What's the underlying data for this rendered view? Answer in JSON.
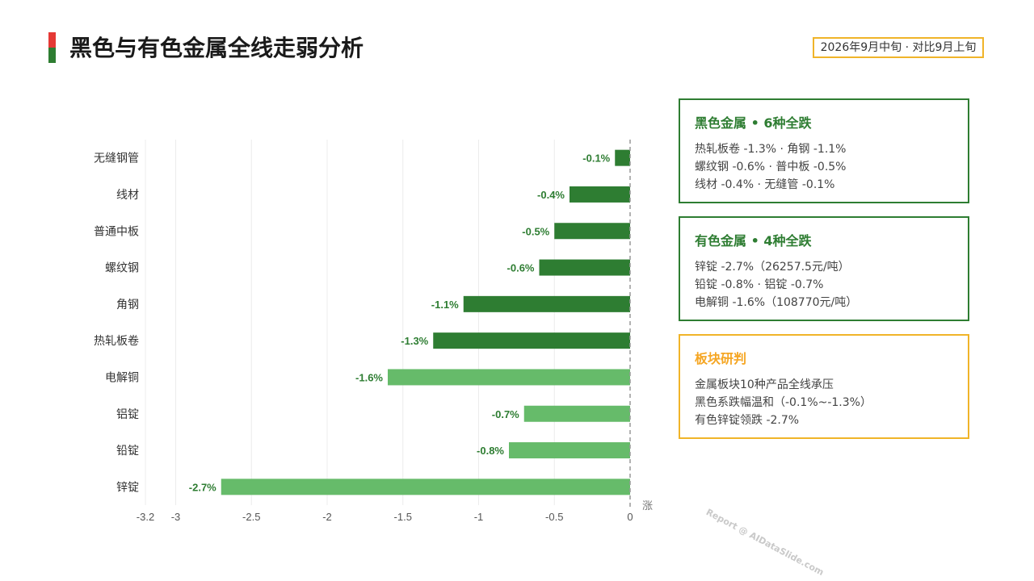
{
  "header": {
    "title": "黑色与有色金属全线走弱分析",
    "date_badge": "2026年9月中旬 · 对比9月上旬"
  },
  "colors": {
    "accent_red": "#e53935",
    "accent_green": "#2e7d32",
    "ferrous_bar": "#2e7d32",
    "nonferrous_bar": "#66bb6a",
    "label_green": "#2e7d32",
    "badge_border": "#f0b429",
    "analysis_title": "#f5a623"
  },
  "chart_data": {
    "type": "bar",
    "orientation": "horizontal",
    "categories": [
      "无缝钢管",
      "线材",
      "普通中板",
      "螺纹钢",
      "角钢",
      "热轧板卷",
      "电解铜",
      "铝锭",
      "铅锭",
      "锌锭"
    ],
    "values": [
      -0.1,
      -0.4,
      -0.5,
      -0.6,
      -1.1,
      -1.3,
      -1.6,
      -0.7,
      -0.8,
      -2.7
    ],
    "data_labels": [
      "-0.1%",
      "-0.4%",
      "-0.5%",
      "-0.6%",
      "-1.1%",
      "-1.3%",
      "-1.6%",
      "-0.7%",
      "-0.8%",
      "-2.7%"
    ],
    "groups": [
      "ferrous",
      "ferrous",
      "ferrous",
      "ferrous",
      "ferrous",
      "ferrous",
      "nonferrous",
      "nonferrous",
      "nonferrous",
      "nonferrous"
    ],
    "xlim": [
      -3.2,
      0
    ],
    "xticks": [
      -3.2,
      -3,
      -2.5,
      -2,
      -1.5,
      -1,
      -0.5,
      0
    ],
    "xtick_labels": [
      "-3.2",
      "-3",
      "-2.5",
      "-2",
      "-1.5",
      "-1",
      "-0.5",
      "0"
    ],
    "zero_line_label": "涨",
    "grid": true
  },
  "cards": [
    {
      "title": "黑色金属 • 6种全跌",
      "lines": [
        "热轧板卷 -1.3% · 角钢 -1.1%",
        "螺纹钢 -0.6% · 普中板 -0.5%",
        "线材 -0.4% · 无缝管 -0.1%"
      ],
      "border": "#2e7d32",
      "title_color": "#2e7d32"
    },
    {
      "title": "有色金属 • 4种全跌",
      "lines": [
        "锌锭 -2.7%（26257.5元/吨）",
        "铅锭 -0.8% · 铝锭 -0.7%",
        "电解铜 -1.6%（108770元/吨）"
      ],
      "border": "#2e7d32",
      "title_color": "#2e7d32"
    },
    {
      "title": "板块研判",
      "lines": [
        "金属板块10种产品全线承压",
        "黑色系跌幅温和（-0.1%~-1.3%）",
        "有色锌锭领跌 -2.7%"
      ],
      "border": "#f0b429",
      "title_color": "#f5a623"
    }
  ],
  "watermark": "Report @ AIDataSlide.com"
}
